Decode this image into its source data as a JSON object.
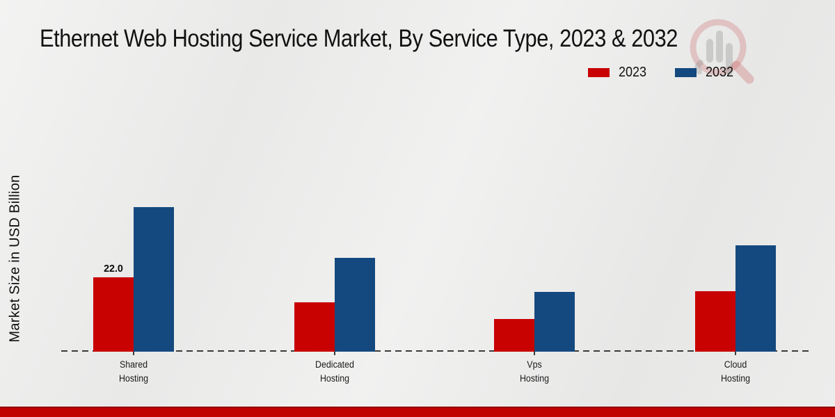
{
  "title": "Ethernet Web Hosting Service Market, By Service Type, 2023 & 2032",
  "ylabel": "Market Size in USD Billion",
  "legend": [
    {
      "label": "2023",
      "color": "#c80101"
    },
    {
      "label": "2032",
      "color": "#14497f"
    }
  ],
  "watermark_icon": "bar-chart-magnifier-logo",
  "footer": {
    "strip_color": "#c00202"
  },
  "chart_data": {
    "type": "bar",
    "unit": "USD Billion",
    "title": "Ethernet Web Hosting Service Market, By Service Type, 2023 & 2032",
    "xlabel": "",
    "ylabel": "Market Size in USD Billion",
    "categories": [
      "Shared Hosting",
      "Dedicated Hosting",
      "Vps Hosting",
      "Cloud Hosting"
    ],
    "series": [
      {
        "name": "2023",
        "color": "#c80101",
        "values": [
          22.0,
          14.6,
          9.7,
          17.9
        ],
        "labels": [
          "22.0",
          "",
          "",
          ""
        ]
      },
      {
        "name": "2032",
        "color": "#14497f",
        "values": [
          42.8,
          27.8,
          17.7,
          31.5
        ],
        "labels": [
          "",
          "",
          "",
          ""
        ]
      }
    ],
    "ylim": [
      0,
      50
    ],
    "grid": false,
    "y_axis_ticks_visible": false,
    "baseline_style": "dashed",
    "legend_position": "top-right"
  }
}
